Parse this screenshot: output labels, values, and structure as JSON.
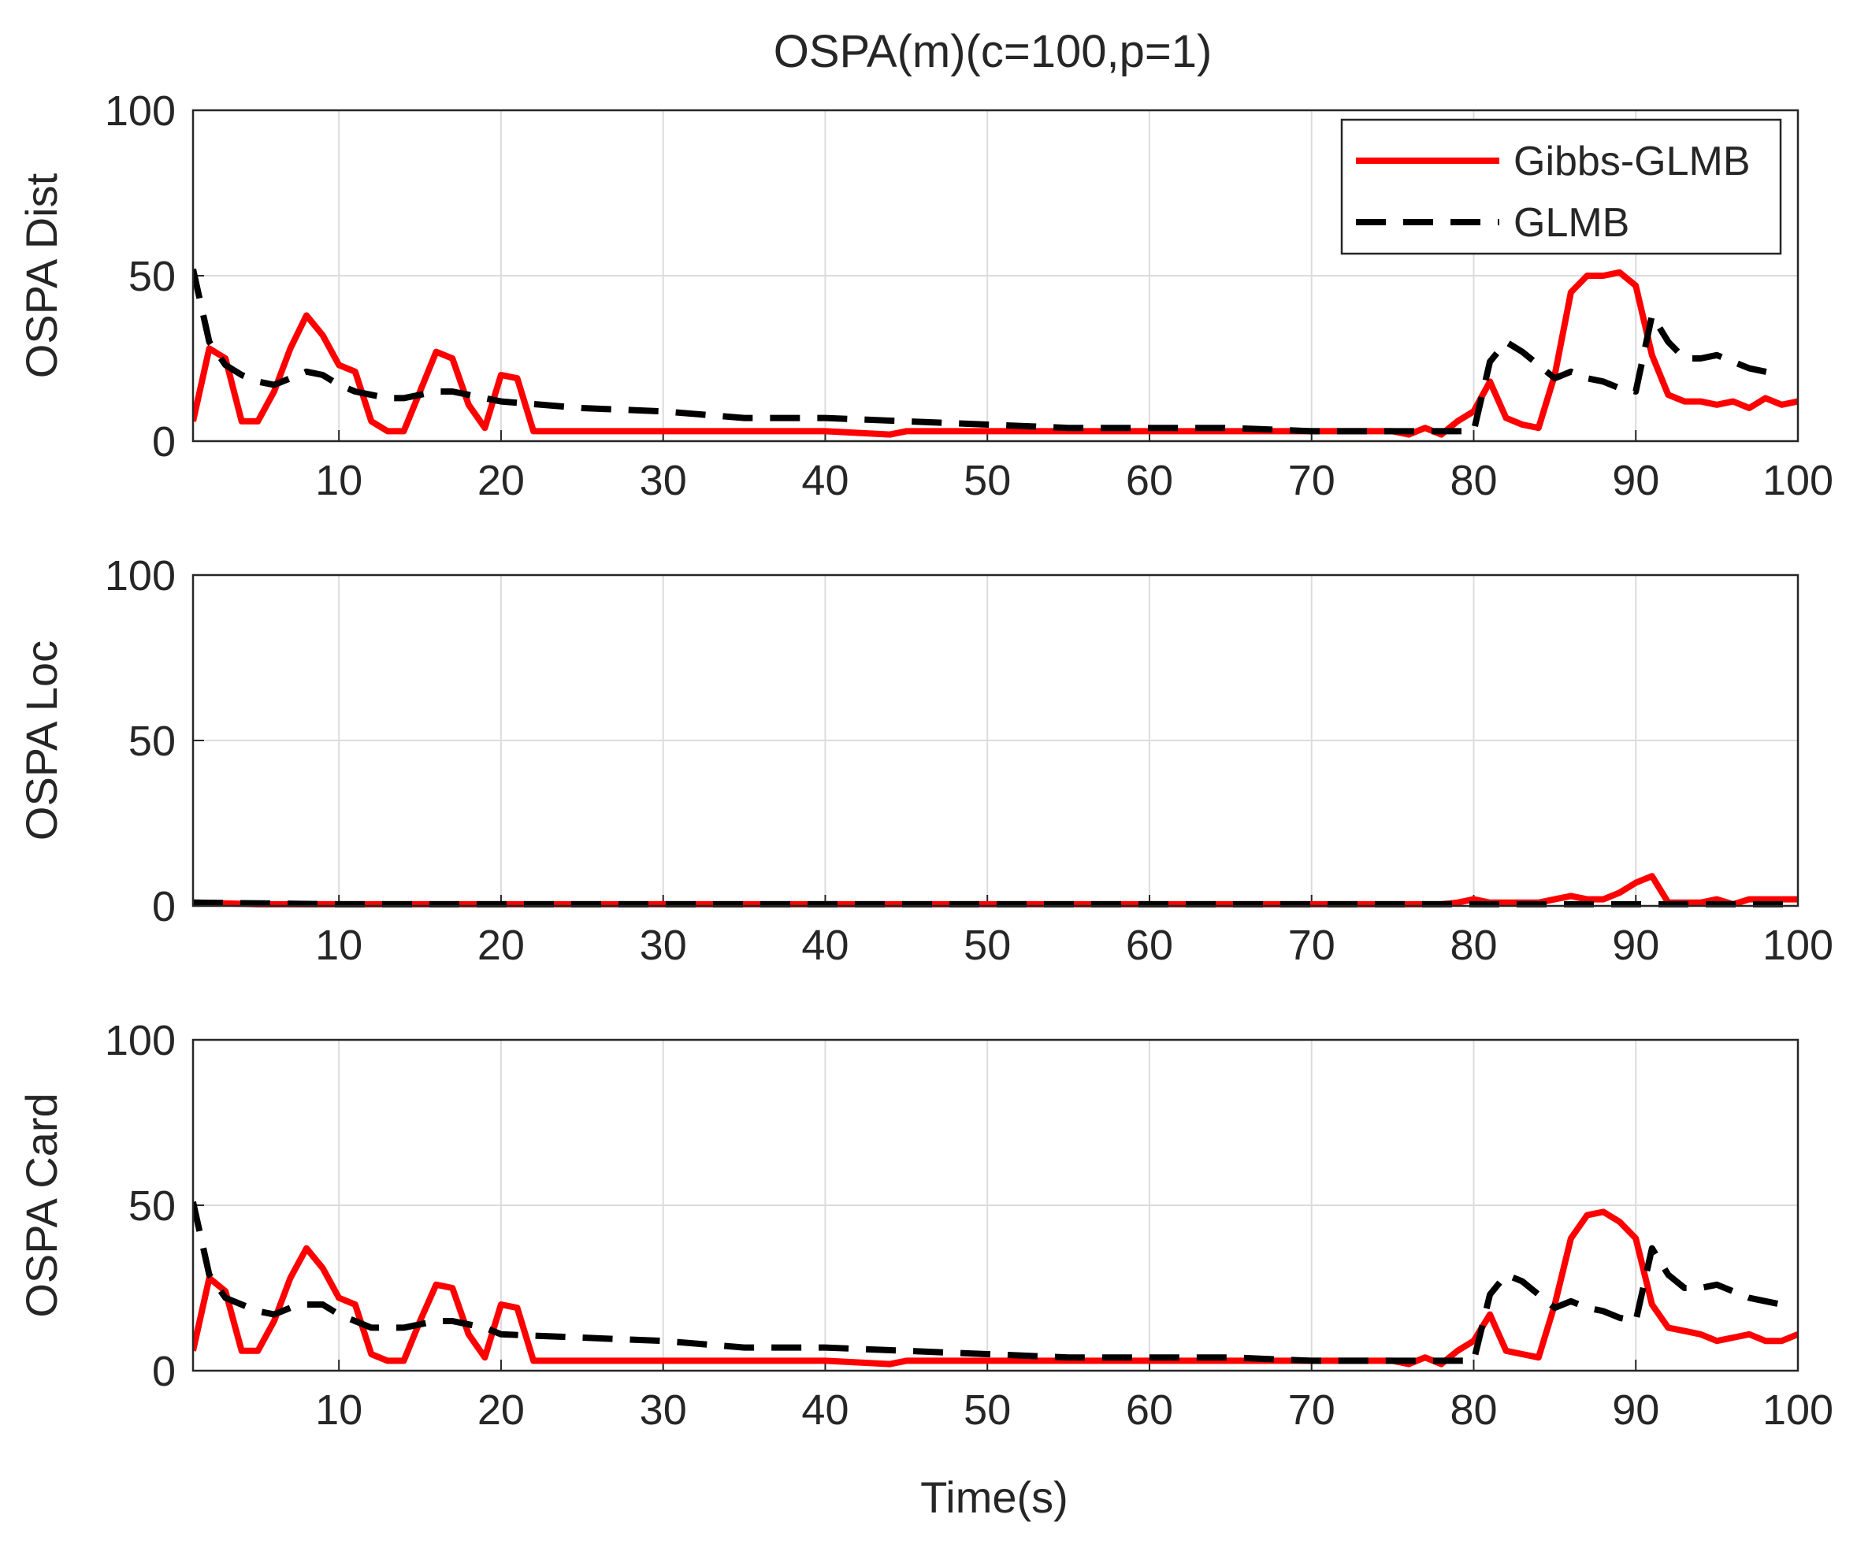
{
  "chart_data": {
    "type": "line",
    "title": "OSPA(m)(c=100,p=1)",
    "xlabel": "Time(s)",
    "xlim": [
      1,
      100
    ],
    "xticks": [
      10,
      20,
      30,
      40,
      50,
      60,
      70,
      80,
      90,
      100
    ],
    "legend": {
      "placement": "top-right",
      "entries": [
        "Gibbs-GLMB",
        "GLMB"
      ]
    },
    "colors": {
      "Gibbs-GLMB": "#ff0000",
      "GLMB": "#000000",
      "grid": "#dcdcdc",
      "axes": "#262626"
    },
    "subplots": [
      {
        "ylabel": "OSPA Dist",
        "ylim": [
          0,
          100
        ],
        "yticks": [
          0,
          50,
          100
        ],
        "series": [
          {
            "name": "Gibbs-GLMB",
            "x": [
              1,
              2,
              3,
              4,
              5,
              6,
              7,
              8,
              9,
              10,
              11,
              12,
              13,
              14,
              15,
              16,
              17,
              18,
              19,
              20,
              21,
              22,
              23,
              25,
              28,
              29,
              30,
              35,
              40,
              44,
              45,
              50,
              55,
              60,
              65,
              70,
              75,
              76,
              77,
              78,
              79,
              80,
              81,
              82,
              83,
              84,
              85,
              86,
              87,
              88,
              89,
              90,
              91,
              92,
              93,
              94,
              95,
              96,
              97,
              98,
              99,
              100
            ],
            "y": [
              6,
              28,
              25,
              6,
              6,
              15,
              28,
              38,
              32,
              23,
              21,
              6,
              3,
              3,
              15,
              27,
              25,
              11,
              4,
              20,
              19,
              3,
              3,
              3,
              3,
              3,
              3,
              3,
              3,
              2,
              3,
              3,
              3,
              3,
              3,
              3,
              3,
              2,
              4,
              2,
              6,
              9,
              18,
              7,
              5,
              4,
              20,
              45,
              50,
              50,
              51,
              47,
              26,
              14,
              12,
              12,
              11,
              12,
              10,
              13,
              11,
              12
            ]
          },
          {
            "name": "GLMB",
            "x": [
              1,
              2,
              3,
              4,
              5,
              6,
              7,
              8,
              9,
              10,
              11,
              12,
              13,
              14,
              15,
              16,
              17,
              18,
              19,
              20,
              25,
              30,
              35,
              40,
              45,
              50,
              55,
              60,
              65,
              70,
              75,
              80,
              81,
              82,
              83,
              84,
              85,
              86,
              87,
              88,
              89,
              90,
              91,
              92,
              93,
              94,
              95,
              96,
              97,
              98,
              99
            ],
            "y": [
              52,
              30,
              23,
              20,
              18,
              17,
              19,
              21,
              20,
              17,
              15,
              14,
              13,
              13,
              14,
              15,
              15,
              14,
              13,
              12,
              10,
              9,
              7,
              7,
              6,
              5,
              4,
              4,
              4,
              3,
              3,
              3,
              24,
              30,
              27,
              23,
              19,
              21,
              19,
              18,
              16,
              15,
              38,
              30,
              25,
              25,
              26,
              24,
              22,
              21,
              20
            ]
          }
        ]
      },
      {
        "ylabel": "OSPA Loc",
        "ylim": [
          0,
          100
        ],
        "yticks": [
          0,
          50,
          100
        ],
        "series": [
          {
            "name": "Gibbs-GLMB",
            "x": [
              1,
              5,
              10,
              20,
              30,
              40,
              50,
              60,
              70,
              78,
              79,
              80,
              81,
              82,
              83,
              84,
              85,
              86,
              87,
              88,
              89,
              90,
              91,
              92,
              93,
              94,
              95,
              96,
              97,
              98,
              99,
              100
            ],
            "y": [
              1,
              0.5,
              0.5,
              0.5,
              0.5,
              0.5,
              0.5,
              0.5,
              0.5,
              0.5,
              1,
              2,
              1,
              1,
              1,
              1,
              2,
              3,
              2,
              2,
              4,
              7,
              9,
              1,
              1,
              1,
              2,
              0.5,
              2,
              2,
              2,
              2
            ]
          },
          {
            "name": "GLMB",
            "x": [
              1,
              10,
              20,
              30,
              40,
              50,
              60,
              70,
              80,
              90,
              100
            ],
            "y": [
              1,
              0.5,
              0.5,
              0.5,
              0.5,
              0.5,
              0.5,
              0.5,
              0.5,
              0.5,
              0.5
            ]
          }
        ]
      },
      {
        "ylabel": "OSPA Card",
        "ylim": [
          0,
          100
        ],
        "yticks": [
          0,
          50,
          100
        ],
        "series": [
          {
            "name": "Gibbs-GLMB",
            "x": [
              1,
              2,
              3,
              4,
              5,
              6,
              7,
              8,
              9,
              10,
              11,
              12,
              13,
              14,
              15,
              16,
              17,
              18,
              19,
              20,
              21,
              22,
              23,
              25,
              28,
              29,
              30,
              35,
              40,
              44,
              45,
              50,
              55,
              60,
              65,
              70,
              75,
              76,
              77,
              78,
              79,
              80,
              81,
              82,
              83,
              84,
              85,
              86,
              87,
              88,
              89,
              90,
              91,
              92,
              93,
              94,
              95,
              96,
              97,
              98,
              99,
              100
            ],
            "y": [
              6,
              28,
              24,
              6,
              6,
              15,
              28,
              37,
              31,
              22,
              20,
              5,
              3,
              3,
              15,
              26,
              25,
              11,
              4,
              20,
              19,
              3,
              3,
              3,
              3,
              3,
              3,
              3,
              3,
              2,
              3,
              3,
              3,
              3,
              3,
              3,
              3,
              2,
              4,
              2,
              6,
              9,
              17,
              6,
              5,
              4,
              20,
              40,
              47,
              48,
              45,
              40,
              20,
              13,
              12,
              11,
              9,
              10,
              11,
              9,
              9,
              11
            ]
          },
          {
            "name": "GLMB",
            "x": [
              1,
              2,
              3,
              4,
              5,
              6,
              7,
              8,
              9,
              10,
              11,
              12,
              13,
              14,
              15,
              16,
              17,
              18,
              19,
              20,
              25,
              30,
              35,
              40,
              45,
              50,
              55,
              60,
              65,
              70,
              75,
              80,
              81,
              82,
              83,
              84,
              85,
              86,
              87,
              88,
              89,
              90,
              91,
              92,
              93,
              94,
              95,
              96,
              97,
              98,
              99
            ],
            "y": [
              51,
              29,
              22,
              20,
              18,
              17,
              19,
              20,
              20,
              17,
              15,
              13,
              13,
              13,
              14,
              15,
              15,
              14,
              13,
              11,
              10,
              9,
              7,
              7,
              6,
              5,
              4,
              4,
              4,
              3,
              3,
              3,
              23,
              29,
              27,
              23,
              19,
              21,
              19,
              18,
              16,
              15,
              37,
              29,
              25,
              25,
              26,
              24,
              22,
              21,
              20
            ]
          }
        ]
      }
    ]
  }
}
